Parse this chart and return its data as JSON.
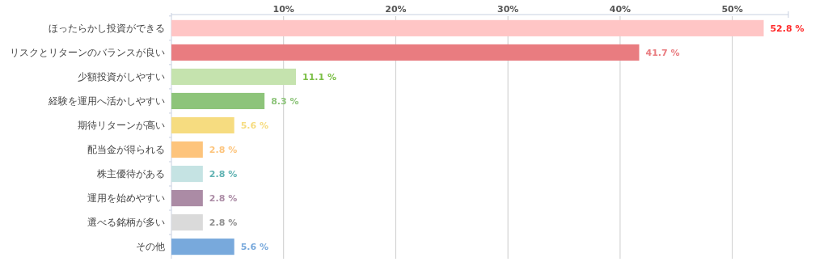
{
  "chart_data": {
    "type": "bar",
    "orientation": "horizontal",
    "categories": [
      "ほったらかし投資ができる",
      "リスクとリターンのバランスが良い",
      "少額投資がしやすい",
      "経験を運用へ活かしやすい",
      "期待リターンが高い",
      "配当金が得られる",
      "株主優待がある",
      "運用を始めやすい",
      "選べる銘柄が多い",
      "その他"
    ],
    "values": [
      52.8,
      41.7,
      11.1,
      8.3,
      5.6,
      2.8,
      2.8,
      2.8,
      2.8,
      5.6
    ],
    "colors": [
      "#ffc5c5",
      "#e97c80",
      "#c5e3ae",
      "#8dc47a",
      "#f6dc80",
      "#fdc47c",
      "#c5e3e3",
      "#ab8ba5",
      "#dadada",
      "#78a9dc"
    ],
    "value_labels": [
      "52.8 %",
      "41.7 %",
      "11.1 %",
      "8.3 %",
      "5.6 %",
      "2.8 %",
      "2.8 %",
      "2.8 %",
      "2.8 %",
      "5.6 %"
    ],
    "xlim": [
      0,
      55
    ],
    "xticks": [
      {
        "value": 10,
        "label": "10%"
      },
      {
        "value": 20,
        "label": "20%"
      },
      {
        "value": 30,
        "label": "30%"
      },
      {
        "value": 40,
        "label": "40%"
      },
      {
        "value": 50,
        "label": "50%"
      }
    ],
    "grid": "x"
  }
}
